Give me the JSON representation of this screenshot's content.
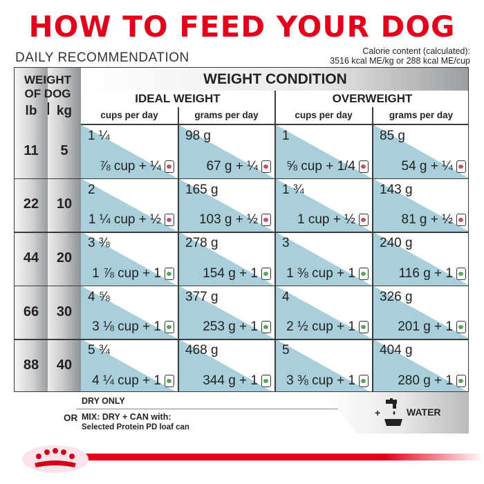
{
  "header": {
    "title": "HOW TO FEED YOUR DOG",
    "subtitle": "DAILY RECOMMENDATION",
    "calorie_line1": "Calorie content (calculated):",
    "calorie_line2": "3516 kcal ME/kg or 288 kcal ME/cup"
  },
  "table": {
    "weight_of_dog_line1": "WEIGHT",
    "weight_of_dog_line2": "OF DOG",
    "lb_label": "lb",
    "kg_label": "kg",
    "weight_condition": "WEIGHT CONDITION",
    "ideal_weight": "IDEAL WEIGHT",
    "overweight": "OVERWEIGHT",
    "cups_per_day": "cups per day",
    "grams_per_day": "grams per day",
    "rows": [
      {
        "lb": "11",
        "kg": "5",
        "ideal_cups": "1 ¼",
        "ideal_cups_mix": "⅞ cup + ¼",
        "ideal_grams": "98 g",
        "ideal_grams_mix": "67 g + ¼",
        "over_cups": "1",
        "over_cups_mix": "⅝ cup + 1/4",
        "over_grams": "85 g",
        "over_grams_mix": "54 g + ¼"
      },
      {
        "lb": "22",
        "kg": "10",
        "ideal_cups": "2",
        "ideal_cups_mix": "1 ¼ cup + ½",
        "ideal_grams": "165 g",
        "ideal_grams_mix": "103 g + ½",
        "over_cups": "1 ¾",
        "over_cups_mix": "1 cup + ½",
        "over_grams": "143 g",
        "over_grams_mix": "81 g + ½"
      },
      {
        "lb": "44",
        "kg": "20",
        "ideal_cups": "3 ⅜",
        "ideal_cups_mix": "1 ⅞ cup + 1",
        "ideal_grams": "278 g",
        "ideal_grams_mix": "154 g + 1",
        "over_cups": "3",
        "over_cups_mix": "1 ⅜ cup + 1",
        "over_grams": "240 g",
        "over_grams_mix": "116 g + 1"
      },
      {
        "lb": "66",
        "kg": "30",
        "ideal_cups": "4 ⅝",
        "ideal_cups_mix": "3 ⅛ cup + 1",
        "ideal_grams": "377 g",
        "ideal_grams_mix": "253 g + 1",
        "over_cups": "4",
        "over_cups_mix": "2 ½ cup + 1",
        "over_grams": "326 g",
        "over_grams_mix": "201 g + 1"
      },
      {
        "lb": "88",
        "kg": "40",
        "ideal_cups": "5 ¾",
        "ideal_cups_mix": "4 ¼ cup + 1",
        "ideal_grams": "468 g",
        "ideal_grams_mix": "344 g + 1",
        "over_cups": "5",
        "over_cups_mix": "3 ⅜ cup + 1",
        "over_grams": "404 g",
        "over_grams_mix": "280 g + 1"
      }
    ]
  },
  "legend": {
    "dry_only": "DRY ONLY",
    "or": "OR",
    "mix": "MIX: DRY + CAN with:",
    "product": "Selected Protein PD loaf can",
    "plus": "+",
    "water": "WATER"
  },
  "icons": {
    "can_red": "#c94d5e",
    "can_green": "#5aa35a",
    "logo": "royal-canin-crown-logo",
    "water": "water-tap-bowl-icon"
  },
  "colors": {
    "brand_red": "#e3001b",
    "cell_blue": "#a9cfdb"
  }
}
